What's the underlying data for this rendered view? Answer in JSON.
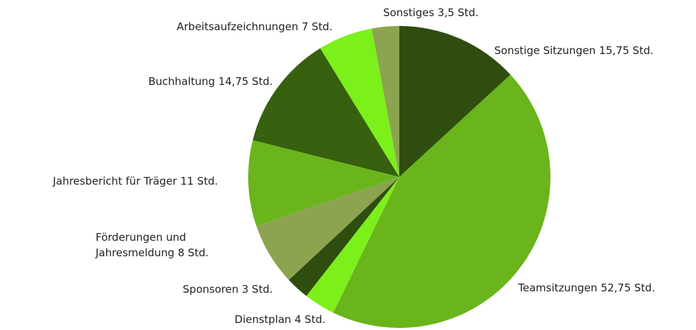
{
  "chart_data": {
    "type": "pie",
    "categories": [
      "Sonstige Sitzungen",
      "Teamsitzungen",
      "Dienstplan",
      "Sponsoren",
      "Förderungen und Jahresmeldung",
      "Jahresbericht für Träger",
      "Buchhaltung",
      "Arbeitsaufzeichnungen",
      "Sonstiges"
    ],
    "values": [
      15.75,
      52.75,
      4,
      3,
      8,
      11,
      14.75,
      7,
      3.5
    ],
    "value_labels": [
      "15,75 Std.",
      "52,75 Std.",
      "4 Std.",
      "3 Std.",
      "8 Std.",
      "11 Std.",
      "14,75 Std.",
      "7 Std.",
      "3,5 Std."
    ],
    "colors": [
      "#2e4d0f",
      "#6ab41c",
      "#7cf01a",
      "#2e4d0f",
      "#8ca450",
      "#6ab41c",
      "#37600f",
      "#7cf01a",
      "#8ca450"
    ]
  }
}
